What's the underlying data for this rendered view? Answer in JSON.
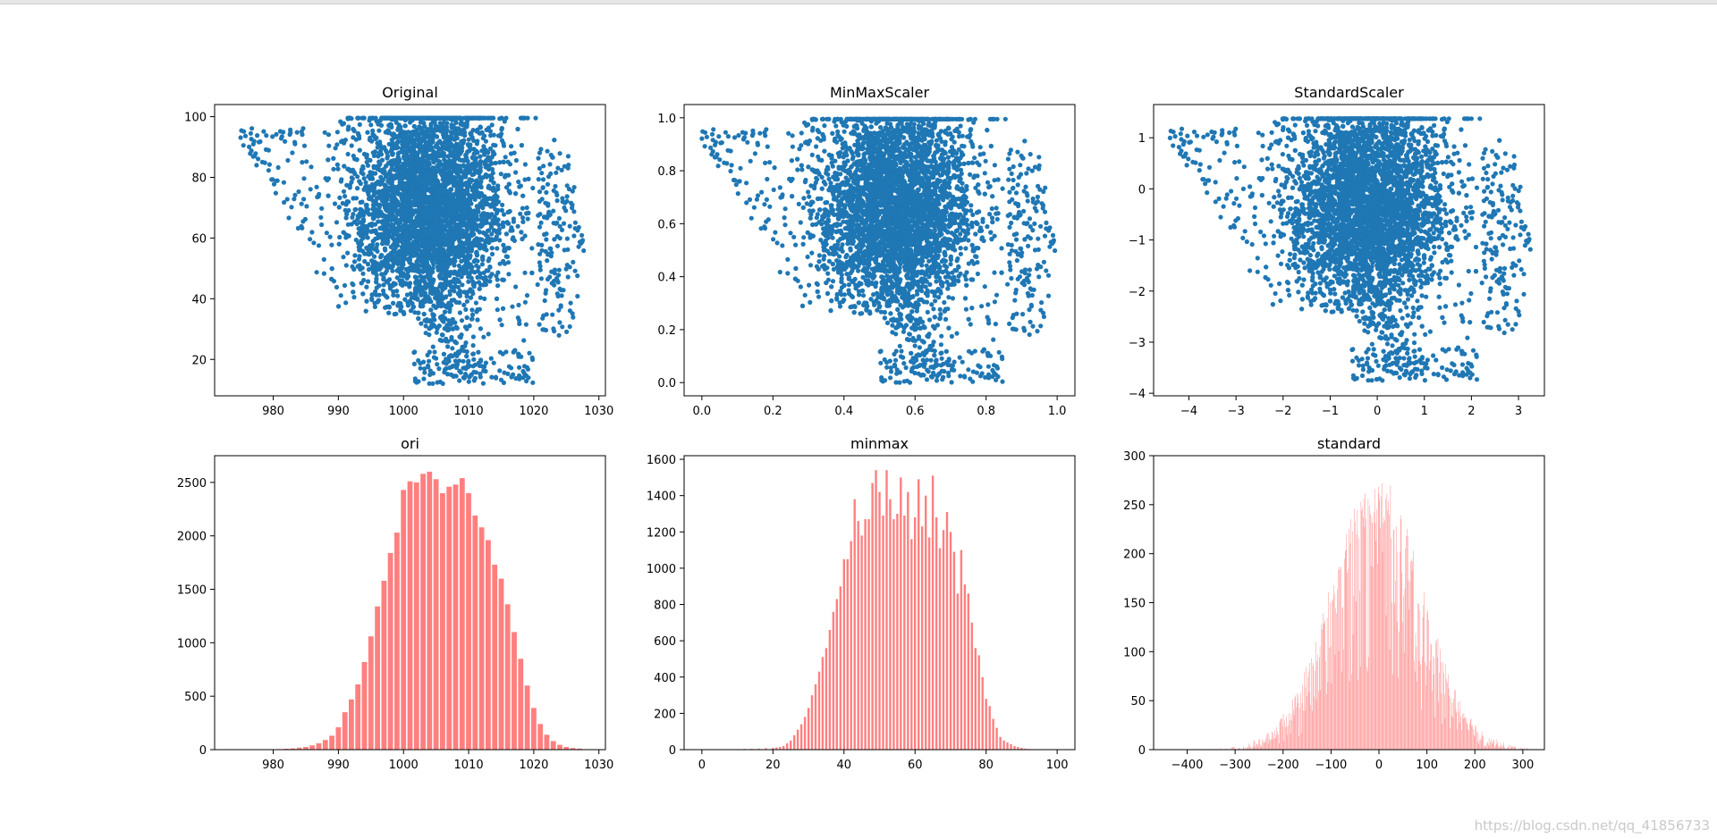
{
  "watermark": "https://blog.csdn.net/qq_41856733",
  "colors": {
    "scatter": "#1f77b4",
    "hist": "#ff7f7f",
    "axis": "#000000"
  },
  "chart_data": [
    {
      "type": "scatter",
      "title": "Original",
      "xlim": [
        971,
        1031
      ],
      "ylim": [
        8,
        104
      ],
      "xticks": [
        980,
        990,
        1000,
        1010,
        1020,
        1030
      ],
      "yticks": [
        20,
        40,
        60,
        80,
        100
      ],
      "point_cloud": {
        "x_min": 975,
        "x_max": 1028,
        "y_min": 12,
        "y_max": 100
      }
    },
    {
      "type": "scatter",
      "title": "MinMaxScaler",
      "xlim": [
        -0.05,
        1.05
      ],
      "ylim": [
        -0.05,
        1.05
      ],
      "xticks": [
        0.0,
        0.2,
        0.4,
        0.6,
        0.8,
        1.0
      ],
      "yticks": [
        0.0,
        0.2,
        0.4,
        0.6,
        0.8,
        1.0
      ],
      "tick_format": 1,
      "point_cloud": {
        "x_min": 0,
        "x_max": 1,
        "y_min": 0,
        "y_max": 1
      }
    },
    {
      "type": "scatter",
      "title": "StandardScaler",
      "xlim": [
        -4.75,
        3.55
      ],
      "ylim": [
        -4.05,
        1.65
      ],
      "xticks": [
        -4,
        -3,
        -2,
        -1,
        0,
        1,
        2,
        3
      ],
      "yticks": [
        -4,
        -3,
        -2,
        -1,
        0,
        1
      ],
      "point_cloud": {
        "x_min": -4.4,
        "x_max": 3.3,
        "y_min": -3.75,
        "y_max": 1.4
      }
    },
    {
      "type": "bar",
      "title": "ori",
      "xlim": [
        971,
        1031
      ],
      "ylim": [
        0,
        2750
      ],
      "xticks": [
        980,
        990,
        1000,
        1010,
        1020,
        1030
      ],
      "yticks": [
        0,
        500,
        1000,
        1500,
        2000,
        2500
      ],
      "bin_width": 1,
      "x": [
        980,
        981,
        982,
        983,
        984,
        985,
        986,
        987,
        988,
        989,
        990,
        991,
        992,
        993,
        994,
        995,
        996,
        997,
        998,
        999,
        1000,
        1001,
        1002,
        1003,
        1004,
        1005,
        1006,
        1007,
        1008,
        1009,
        1010,
        1011,
        1012,
        1013,
        1014,
        1015,
        1016,
        1017,
        1018,
        1019,
        1020,
        1021,
        1022,
        1023,
        1024,
        1025,
        1026,
        1027
      ],
      "values": [
        3,
        5,
        8,
        12,
        18,
        25,
        40,
        60,
        90,
        130,
        210,
        350,
        470,
        610,
        820,
        1060,
        1340,
        1580,
        1840,
        2030,
        2430,
        2510,
        2500,
        2580,
        2600,
        2530,
        2400,
        2460,
        2480,
        2540,
        2400,
        2190,
        2080,
        1960,
        1730,
        1600,
        1360,
        1100,
        850,
        600,
        390,
        240,
        140,
        80,
        45,
        25,
        15,
        10
      ]
    },
    {
      "type": "bar",
      "title": "minmax",
      "xlim": [
        -5,
        105
      ],
      "ylim": [
        0,
        1620
      ],
      "xticks": [
        0,
        20,
        40,
        60,
        80,
        100
      ],
      "yticks": [
        0,
        200,
        400,
        600,
        800,
        1000,
        1200,
        1400,
        1600
      ],
      "bin_width": 0.75,
      "x": [
        8,
        10,
        12,
        14,
        16,
        18,
        20,
        21,
        22,
        23,
        24,
        25,
        26,
        27,
        28,
        29,
        30,
        31,
        32,
        33,
        34,
        35,
        36,
        37,
        38,
        39,
        40,
        41,
        42,
        43,
        44,
        45,
        46,
        47,
        48,
        49,
        50,
        51,
        52,
        53,
        54,
        55,
        56,
        57,
        58,
        59,
        60,
        61,
        62,
        63,
        64,
        65,
        66,
        67,
        68,
        69,
        70,
        71,
        72,
        73,
        74,
        75,
        76,
        77,
        78,
        79,
        80,
        81,
        82,
        83,
        84,
        85,
        86,
        87,
        88,
        89,
        90,
        91,
        92,
        93,
        94,
        95
      ],
      "values": [
        2,
        3,
        4,
        5,
        6,
        8,
        10,
        12,
        15,
        20,
        35,
        50,
        80,
        110,
        140,
        180,
        230,
        300,
        360,
        430,
        510,
        560,
        660,
        760,
        830,
        900,
        1050,
        1050,
        1150,
        1380,
        1260,
        1180,
        1270,
        1270,
        1470,
        1540,
        1420,
        1290,
        1540,
        1380,
        1270,
        1300,
        1500,
        1290,
        1420,
        1160,
        1280,
        1490,
        1230,
        1400,
        1170,
        1510,
        1280,
        1110,
        1210,
        1310,
        1200,
        1090,
        860,
        1100,
        910,
        860,
        700,
        560,
        520,
        400,
        280,
        240,
        170,
        120,
        70,
        50,
        40,
        30,
        20,
        15,
        10,
        6,
        4,
        3,
        2,
        1
      ]
    },
    {
      "type": "bar",
      "title": "standard",
      "xlim": [
        -470,
        345
      ],
      "ylim": [
        0,
        300
      ],
      "xticks": [
        -400,
        -300,
        -200,
        -100,
        0,
        100,
        200,
        300
      ],
      "yticks": [
        0,
        50,
        100,
        150,
        200,
        250,
        300
      ],
      "bin_width": 1.5,
      "x_range": [
        -435,
        315
      ],
      "envelope": {
        "center": -5,
        "sigma": 92,
        "peak": 255,
        "noise": 28
      }
    }
  ]
}
